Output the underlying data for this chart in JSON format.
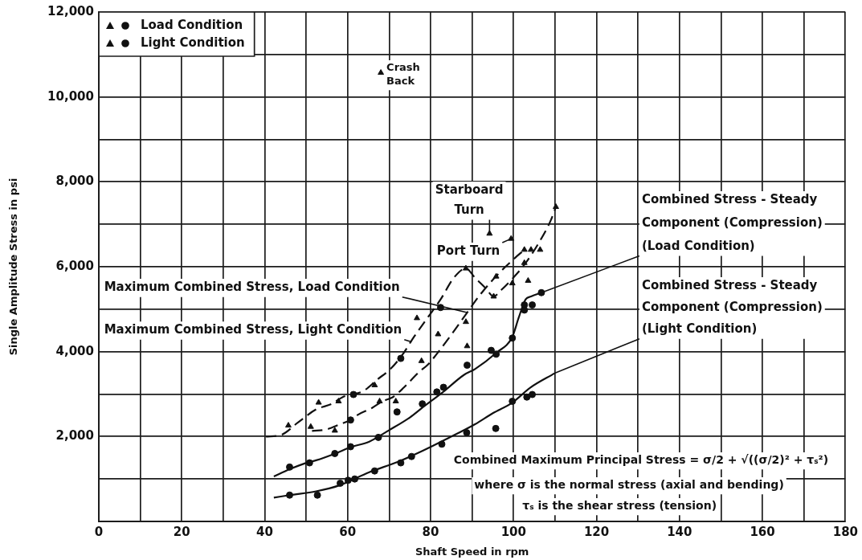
{
  "chart_data": {
    "type": "line",
    "xlabel": "Shaft Speed in rpm",
    "ylabel": "Single Amplitude Stress in psi",
    "xlim": [
      0,
      180
    ],
    "xticks": [
      0,
      {
        "value": 10,
        "label": null
      },
      20,
      {
        "value": 30,
        "label": null
      },
      40,
      {
        "value": 50,
        "label": null
      },
      60,
      {
        "value": 70,
        "label": null
      },
      80,
      {
        "value": 90,
        "label": null
      },
      100,
      {
        "value": 110,
        "label": null
      },
      120,
      {
        "value": 130,
        "label": null
      },
      140,
      {
        "value": 150,
        "label": null
      },
      160,
      {
        "value": 170,
        "label": null
      },
      180
    ],
    "ylim": [
      0,
      12000
    ],
    "yticks": [
      {
        "value": 0,
        "label": null
      },
      {
        "value": 1000,
        "label": null
      },
      {
        "value": 2000,
        "label": "2,000"
      },
      {
        "value": 3000,
        "label": null
      },
      {
        "value": 4000,
        "label": "4,000"
      },
      {
        "value": 5000,
        "label": null
      },
      {
        "value": 6000,
        "label": "6,000"
      },
      {
        "value": 7000,
        "label": null
      },
      {
        "value": 8000,
        "label": "8,000"
      },
      {
        "value": 9000,
        "label": null
      },
      {
        "value": 10000,
        "label": "10,000"
      },
      {
        "value": 11000,
        "label": null
      },
      {
        "value": 12000,
        "label": "12,000"
      }
    ],
    "grid": true,
    "legend": "top left",
    "series": [
      {
        "name": "Load Condition",
        "type": "scatter",
        "marker": "circle",
        "color": "#111111",
        "x": [
          46,
          50.8,
          56.9,
          60.7,
          67.4,
          71.9,
          78,
          81.5,
          83.1,
          88.8,
          94.6,
          95.8,
          99.7,
          102.6,
          102.6,
          104.5,
          106.7,
          60.7,
          72.8,
          82.4
        ],
        "values": [
          1280,
          1380,
          1600,
          1760,
          1980,
          2580,
          2770,
          3050,
          3160,
          3680,
          4030,
          3940,
          4320,
          5100,
          4980,
          5100,
          5390,
          2390,
          3840,
          5040
        ]
      },
      {
        "type": "scatter",
        "marker": "triangle",
        "color": "#111111",
        "x": [
          51.1,
          56.9,
          67.7,
          71.6,
          77.8,
          81.8,
          88.8,
          88.5,
          95.8,
          99.7,
          103.5,
          94.2,
          99.4,
          68
        ],
        "values": [
          2230,
          2140,
          2830,
          2830,
          3780,
          4410,
          4130,
          4700,
          5770,
          5610,
          5670,
          6780,
          6660,
          10570
        ]
      },
      {
        "name": "Light Condition",
        "type": "scatter",
        "marker": "circle",
        "color": "#111111",
        "x": [
          46,
          52.7,
          58.2,
          60.1,
          61.7,
          66.5,
          72.8,
          75.4,
          82.7,
          88.7,
          95.7,
          99.7,
          103.2,
          104.5,
          61.4
        ],
        "values": [
          620,
          620,
          900,
          970,
          1000,
          1190,
          1380,
          1530,
          1820,
          2090,
          2190,
          2830,
          2930,
          2990,
          2990
        ]
      },
      {
        "type": "scatter",
        "marker": "triangle",
        "color": "#111111",
        "x": [
          45.7,
          53,
          57.8,
          66.5,
          76.7,
          88.5,
          95.2,
          102.6,
          102.6,
          104.2,
          106.4,
          110.2
        ],
        "values": [
          2260,
          2800,
          2830,
          3210,
          4790,
          5960,
          5300,
          6090,
          6400,
          6400,
          6400,
          7410
        ]
      },
      {
        "marker": "none",
        "line_style": "dashed",
        "color": "#111111",
        "x": [
          40.3,
          44,
          48,
          52.4,
          56.2,
          58.8,
          63.9,
          67.1,
          70.3,
          73,
          76,
          79.2,
          82.4,
          85.6,
          88.5,
          90.7,
          93.3,
          95.2,
          97,
          100,
          103,
          106,
          109,
          110.2
        ],
        "values": [
          2000,
          2040,
          2330,
          2640,
          2770,
          2930,
          3080,
          3340,
          3590,
          3900,
          4350,
          4790,
          5230,
          5740,
          5960,
          5740,
          5490,
          5300,
          5450,
          5750,
          6100,
          6550,
          7100,
          7410
        ]
      },
      {
        "marker": "none",
        "line_style": "dashed",
        "color": "#111111",
        "x": [
          51.4,
          55,
          58.2,
          60.7,
          62.6,
          65.8,
          68.4,
          70.9,
          73.5,
          75.4,
          77.3,
          79.2,
          81.2,
          85,
          88.8,
          92,
          96,
          99.7,
          102.6
        ],
        "values": [
          2130,
          2170,
          2290,
          2390,
          2520,
          2670,
          2830,
          2930,
          3150,
          3340,
          3530,
          3680,
          3910,
          4400,
          4920,
          5350,
          5800,
          6150,
          6400
        ]
      },
      {
        "marker": "none",
        "line_style": "solid",
        "color": "#111111",
        "x": [
          42.2,
          46,
          50,
          52.4,
          57,
          60.7,
          65.2,
          70,
          75,
          78,
          83,
          88,
          90.7,
          95.8,
          99.7,
          101.2,
          102.9,
          104.2,
          106.7
        ],
        "values": [
          1060,
          1230,
          1380,
          1440,
          1600,
          1750,
          1880,
          2150,
          2450,
          2680,
          3050,
          3450,
          3590,
          3970,
          4350,
          4790,
          5230,
          5300,
          5390
        ]
      },
      {
        "marker": "none",
        "line_style": "solid",
        "color": "#111111",
        "x": [
          42.2,
          46,
          52.4,
          58,
          65.2,
          72,
          78,
          84,
          90.7,
          95,
          99.7,
          104,
          109.9
        ],
        "values": [
          560,
          620,
          710,
          850,
          1160,
          1400,
          1660,
          1950,
          2290,
          2550,
          2800,
          3150,
          3490
        ]
      }
    ],
    "annotations": [
      {
        "text": "Crash Back",
        "x": 68,
        "y": 10570
      },
      {
        "text": "Starboard Turn",
        "x": 94.2,
        "y": 6780
      },
      {
        "text": "Port Turn",
        "x": 99.4,
        "y": 6660
      },
      {
        "text": "Maximum Combined Stress, Load Condition",
        "x": 88.8,
        "y": 4920
      },
      {
        "text": "Maximum Combined Stress, Light Condition",
        "x": 75.4,
        "y": 4230
      },
      {
        "text": "Combined Stress - Steady Component (Compression) (Load Condition)",
        "x": 106.7,
        "y": 5390
      },
      {
        "text": "Combined Stress - Steady Component (Compression) (Light Condition)",
        "x": 109.9,
        "y": 3490
      },
      "Combined Maximum Principal Stress = σ/2 + √((σ/2)² + τₛ²)",
      "where σ is the normal stress (axial and bending)",
      "τₛ is the shear stress (tension)"
    ]
  }
}
